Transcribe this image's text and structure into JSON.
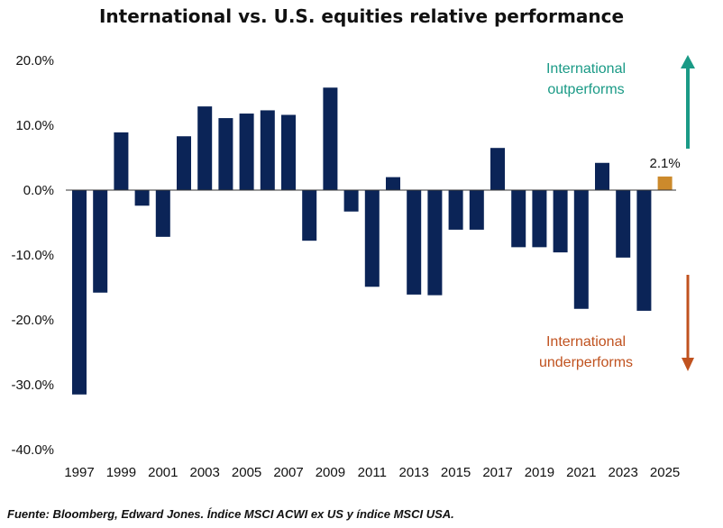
{
  "chart_data": {
    "type": "bar",
    "title": "International vs. U.S. equities relative performance",
    "xlabel": "",
    "ylabel": "",
    "ylim": [
      -40,
      20
    ],
    "yticks": [
      20,
      10,
      0,
      -10,
      -20,
      -30,
      -40
    ],
    "ytick_labels": [
      "20.0%",
      "10.0%",
      "0.0%",
      "-10.0%",
      "-20.0%",
      "-30.0%",
      "-40.0%"
    ],
    "grid": false,
    "categories": [
      "1997",
      "1998",
      "1999",
      "2000",
      "2001",
      "2002",
      "2003",
      "2004",
      "2005",
      "2006",
      "2007",
      "2008",
      "2009",
      "2010",
      "2011",
      "2012",
      "2013",
      "2014",
      "2015",
      "2016",
      "2017",
      "2018",
      "2019",
      "2020",
      "2021",
      "2022",
      "2023",
      "2024",
      "2025"
    ],
    "xtick_labels": [
      "1997",
      "1999",
      "2001",
      "2003",
      "2005",
      "2007",
      "2009",
      "2011",
      "2013",
      "2015",
      "2017",
      "2019",
      "2021",
      "2023",
      "2025"
    ],
    "values": [
      -31.5,
      -15.8,
      8.9,
      -2.4,
      -7.2,
      8.3,
      12.9,
      11.1,
      11.8,
      12.3,
      11.6,
      -7.8,
      15.8,
      -3.3,
      -14.9,
      2.0,
      -16.1,
      -16.2,
      -6.1,
      -6.1,
      6.5,
      -8.8,
      -8.8,
      -9.6,
      -18.3,
      4.2,
      -10.4,
      -18.6,
      2.1
    ],
    "highlight_index": 28,
    "highlight_label": "2.1%",
    "colors": {
      "bar": "#0b2457",
      "highlight": "#cc8a2c",
      "axis": "#333333"
    },
    "annotations": {
      "up": {
        "lines": [
          "International",
          "outperforms"
        ],
        "color": "#1a9a86"
      },
      "down": {
        "lines": [
          "International",
          "underperforms"
        ],
        "color": "#c0521f"
      }
    }
  },
  "source": "Fuente: Bloomberg, Edward Jones. Índice MSCI ACWI ex US y índice MSCI USA."
}
